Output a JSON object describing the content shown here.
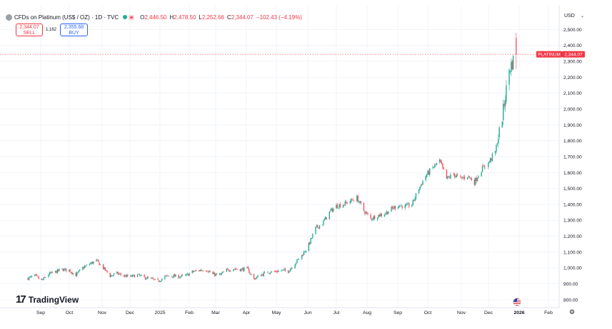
{
  "header": {
    "title": "CFDs on Platinum (US$ / OZ) · 1D · TVC",
    "ohlc": [
      {
        "key": "O",
        "value": "2,446.50"
      },
      {
        "key": "H",
        "value": "2,478.50"
      },
      {
        "key": "L",
        "value": "2,252.66"
      },
      {
        "key": "C",
        "value": "2,344.07"
      }
    ],
    "change": "−102.43 (−4.19%)"
  },
  "trade": {
    "sell_price": "2,344.07",
    "sell_label": "SELL",
    "spread": "1,162",
    "buy_price": "2,355.68",
    "buy_label": "BUY"
  },
  "currency": "USD",
  "logo_text": "TradingView",
  "colors": {
    "up": "#22ab94",
    "down": "#f7525f",
    "label_bg": "#f23645",
    "text": "#131722",
    "axis_text": "#131722",
    "grid": "#f0f3fa"
  },
  "chart_data": {
    "type": "candlestick",
    "symbol_label": "PLATINUM",
    "last_price": 2344.07,
    "last_price_label": "2,344.07",
    "ylim": [
      750,
      2560
    ],
    "y_ticks": [
      800,
      900,
      1000,
      1100,
      1200,
      1300,
      1400,
      1500,
      1600,
      1700,
      1800,
      1900,
      2000,
      2100,
      2200,
      2300,
      2400,
      2500
    ],
    "y_tick_labels": [
      "800.00",
      "900.00",
      "1,000.00",
      "1,100.00",
      "1,200.00",
      "1,300.00",
      "1,400.00",
      "1,500.00",
      "1,600.00",
      "1,700.00",
      "1,800.00",
      "1,900.00",
      "2,000.00",
      "2,100.00",
      "2,200.00",
      "2,300.00",
      "2,400.00",
      "2,500.00"
    ],
    "x_labels": [
      "Sep",
      "Oct",
      "Nov",
      "Dec",
      "2025",
      "Feb",
      "Mar",
      "Apr",
      "May",
      "Jun",
      "Jul",
      "Aug",
      "Sep",
      "Oct",
      "Nov",
      "Dec",
      "2026",
      "Feb"
    ],
    "x_label_bold": "2026",
    "grid": true,
    "price_path": [
      [
        "2024-08-19",
        935
      ],
      [
        "2024-08-26",
        950
      ],
      [
        "2024-09-02",
        920
      ],
      [
        "2024-09-09",
        960
      ],
      [
        "2024-09-16",
        975
      ],
      [
        "2024-09-23",
        990
      ],
      [
        "2024-09-30",
        985
      ],
      [
        "2024-10-07",
        955
      ],
      [
        "2024-10-14",
        1000
      ],
      [
        "2024-10-21",
        1025
      ],
      [
        "2024-10-28",
        1045
      ],
      [
        "2024-11-04",
        1000
      ],
      [
        "2024-11-11",
        950
      ],
      [
        "2024-11-18",
        965
      ],
      [
        "2024-11-25",
        950
      ],
      [
        "2024-12-02",
        945
      ],
      [
        "2024-12-09",
        955
      ],
      [
        "2024-12-16",
        940
      ],
      [
        "2024-12-23",
        930
      ],
      [
        "2024-12-30",
        915
      ],
      [
        "2025-01-06",
        945
      ],
      [
        "2025-01-13",
        950
      ],
      [
        "2025-01-20",
        945
      ],
      [
        "2025-01-27",
        950
      ],
      [
        "2025-02-03",
        975
      ],
      [
        "2025-02-10",
        985
      ],
      [
        "2025-02-17",
        990
      ],
      [
        "2025-02-24",
        960
      ],
      [
        "2025-03-03",
        955
      ],
      [
        "2025-03-10",
        985
      ],
      [
        "2025-03-17",
        995
      ],
      [
        "2025-03-24",
        990
      ],
      [
        "2025-03-31",
        995
      ],
      [
        "2025-04-07",
        930
      ],
      [
        "2025-04-14",
        955
      ],
      [
        "2025-04-21",
        975
      ],
      [
        "2025-04-28",
        975
      ],
      [
        "2025-05-05",
        985
      ],
      [
        "2025-05-12",
        980
      ],
      [
        "2025-05-19",
        1030
      ],
      [
        "2025-05-26",
        1080
      ],
      [
        "2025-06-02",
        1145
      ],
      [
        "2025-06-09",
        1250
      ],
      [
        "2025-06-16",
        1280
      ],
      [
        "2025-06-23",
        1350
      ],
      [
        "2025-06-30",
        1390
      ],
      [
        "2025-07-07",
        1400
      ],
      [
        "2025-07-14",
        1420
      ],
      [
        "2025-07-21",
        1440
      ],
      [
        "2025-07-28",
        1360
      ],
      [
        "2025-08-04",
        1310
      ],
      [
        "2025-08-11",
        1330
      ],
      [
        "2025-08-18",
        1340
      ],
      [
        "2025-08-25",
        1370
      ],
      [
        "2025-09-01",
        1395
      ],
      [
        "2025-09-08",
        1385
      ],
      [
        "2025-09-15",
        1400
      ],
      [
        "2025-09-22",
        1500
      ],
      [
        "2025-09-29",
        1580
      ],
      [
        "2025-10-06",
        1630
      ],
      [
        "2025-10-13",
        1670
      ],
      [
        "2025-10-20",
        1560
      ],
      [
        "2025-10-27",
        1590
      ],
      [
        "2025-11-03",
        1560
      ],
      [
        "2025-11-10",
        1580
      ],
      [
        "2025-11-17",
        1540
      ],
      [
        "2025-11-24",
        1620
      ],
      [
        "2025-12-01",
        1660
      ],
      [
        "2025-12-08",
        1730
      ],
      [
        "2025-12-15",
        1950
      ],
      [
        "2025-12-22",
        2250
      ],
      [
        "2025-12-29",
        2344.07
      ]
    ]
  }
}
